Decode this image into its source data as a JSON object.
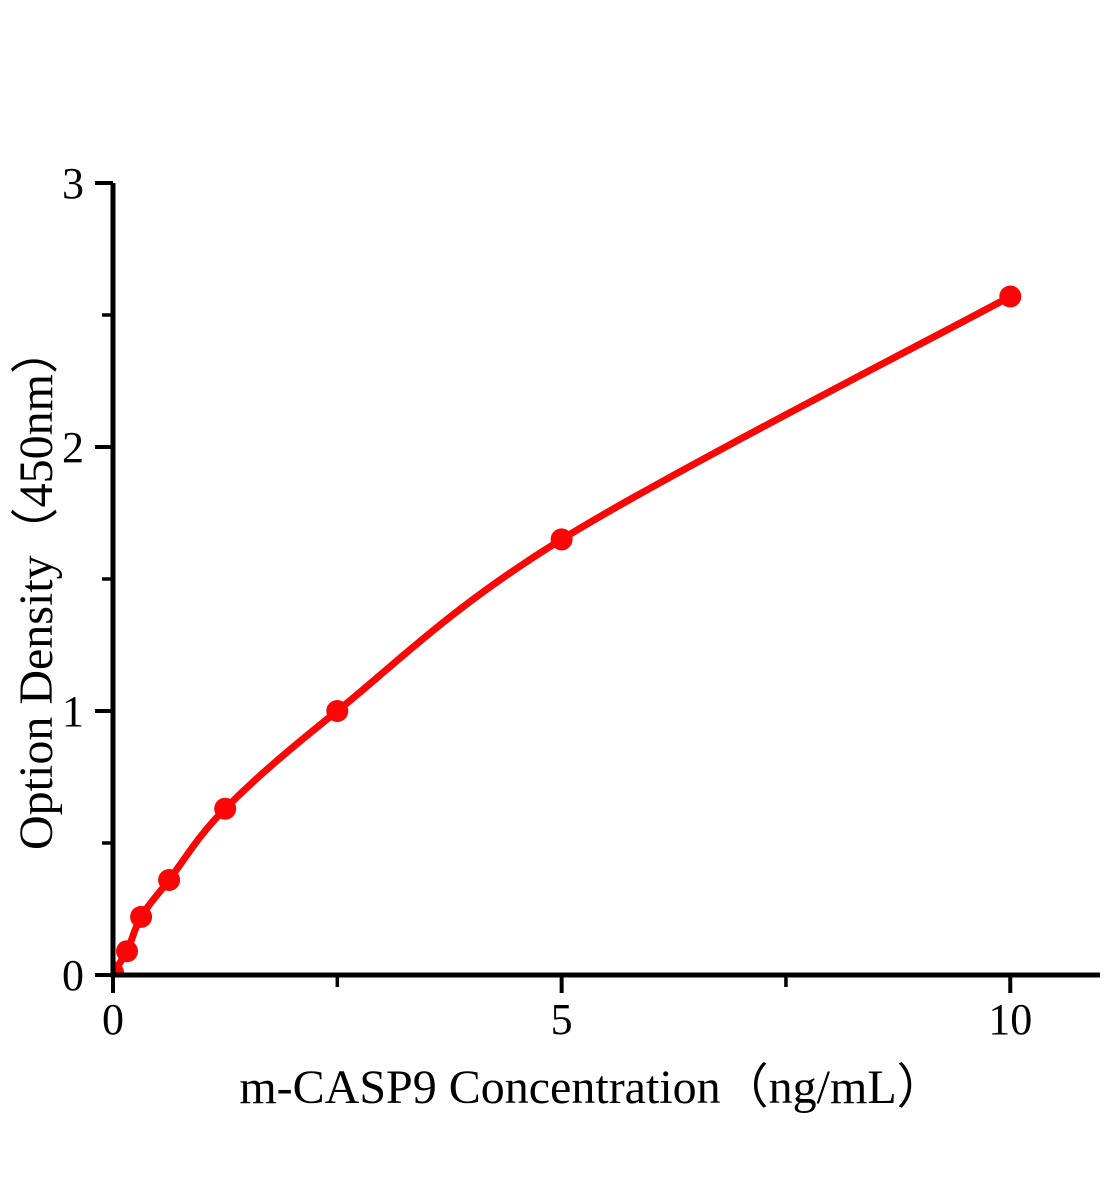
{
  "page": {
    "background_color": "#ffffff"
  },
  "chart_data": {
    "type": "line",
    "title": "",
    "xlabel": "m-CASP9 Concentration（ng/mL）",
    "ylabel": "Option Density（450nm）",
    "x": [
      0,
      0.156,
      0.313,
      0.625,
      1.25,
      2.5,
      5,
      10
    ],
    "y": [
      0.01,
      0.09,
      0.22,
      0.36,
      0.63,
      1.0,
      1.65,
      2.57
    ],
    "xlim": [
      0,
      11
    ],
    "ylim": [
      0,
      3
    ],
    "x_major_ticks": [
      0,
      5,
      10
    ],
    "x_major_tick_labels": [
      "0",
      "5",
      "10"
    ],
    "x_minor_ticks": [
      2.5,
      7.5
    ],
    "y_major_ticks": [
      0,
      1,
      2,
      3
    ],
    "y_major_tick_labels": [
      "0",
      "1",
      "2",
      "3"
    ],
    "y_minor_ticks": [
      0.5,
      1.5,
      2.5
    ],
    "grid": false,
    "legend": null,
    "line_color": "#f90606",
    "marker_color": "#f90606",
    "marker_shape": "circle",
    "axis_color": "#000000",
    "text_color": "#000000"
  }
}
